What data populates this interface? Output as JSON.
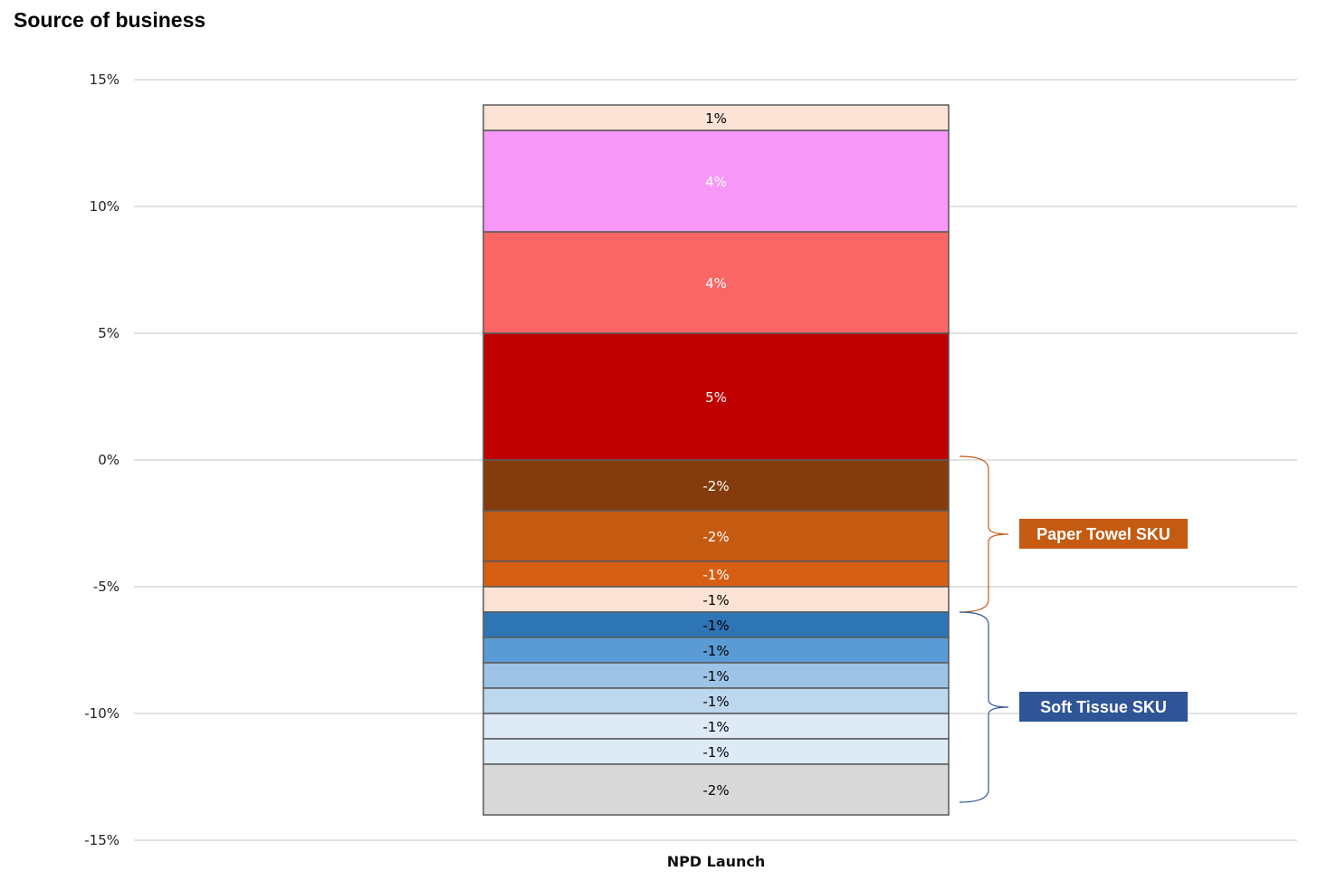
{
  "title": "Source of business",
  "chart_data": {
    "type": "bar",
    "stacked": true,
    "title": "Source of business",
    "categories": [
      "NPD Launch"
    ],
    "ylim": [
      -15,
      15
    ],
    "yticks": [
      15,
      10,
      5,
      0,
      -5,
      -10,
      -15
    ],
    "ytick_labels": [
      "15%",
      "10%",
      "5%",
      "0%",
      "-5%",
      "-10%",
      "-15%"
    ],
    "grid": true,
    "positive_segments": [
      {
        "value": 5.0,
        "label": "5%",
        "color": "#c00000",
        "text_color": "#ffffff"
      },
      {
        "value": 4.0,
        "label": "4%",
        "color": "#f96664",
        "text_color": "#ffffff"
      },
      {
        "value": 4.0,
        "label": "4%",
        "color": "#f797f7",
        "text_color": "#ffffff"
      },
      {
        "value": 1.0,
        "label": "1%",
        "color": "#fde3d6",
        "text_color": "#000000"
      }
    ],
    "negative_segments": [
      {
        "value": -2.0,
        "label": "-2%",
        "color": "#843c0c",
        "text_color": "#ffffff"
      },
      {
        "value": -2.0,
        "label": "-2%",
        "color": "#c55a11",
        "text_color": "#ffffff"
      },
      {
        "value": -1.0,
        "label": "-1%",
        "color": "#d65f14",
        "text_color": "#ffffff"
      },
      {
        "value": -1.0,
        "label": "-1%",
        "color": "#fde3d6",
        "text_color": "#000000"
      },
      {
        "value": -1.0,
        "label": "-1%",
        "color": "#2e75b6",
        "text_color": "#000000"
      },
      {
        "value": -1.0,
        "label": "-1%",
        "color": "#5b9bd5",
        "text_color": "#000000"
      },
      {
        "value": -1.0,
        "label": "-1%",
        "color": "#9dc3e6",
        "text_color": "#000000"
      },
      {
        "value": -1.0,
        "label": "-1%",
        "color": "#bdd7ee",
        "text_color": "#000000"
      },
      {
        "value": -1.0,
        "label": "-1%",
        "color": "#deebf7",
        "text_color": "#000000"
      },
      {
        "value": -1.0,
        "label": "-1%",
        "color": "#ddebf7",
        "text_color": "#000000"
      },
      {
        "value": -2.0,
        "label": "-2%",
        "color": "#d9d9d9",
        "text_color": "#000000"
      }
    ],
    "annotations": [
      {
        "text": "Paper Towel SKU",
        "from": 0,
        "to": -6,
        "color": "#c55a11"
      },
      {
        "text": "Soft Tissue SKU",
        "from": -6,
        "to": -13.5,
        "color": "#2f5597"
      }
    ]
  }
}
